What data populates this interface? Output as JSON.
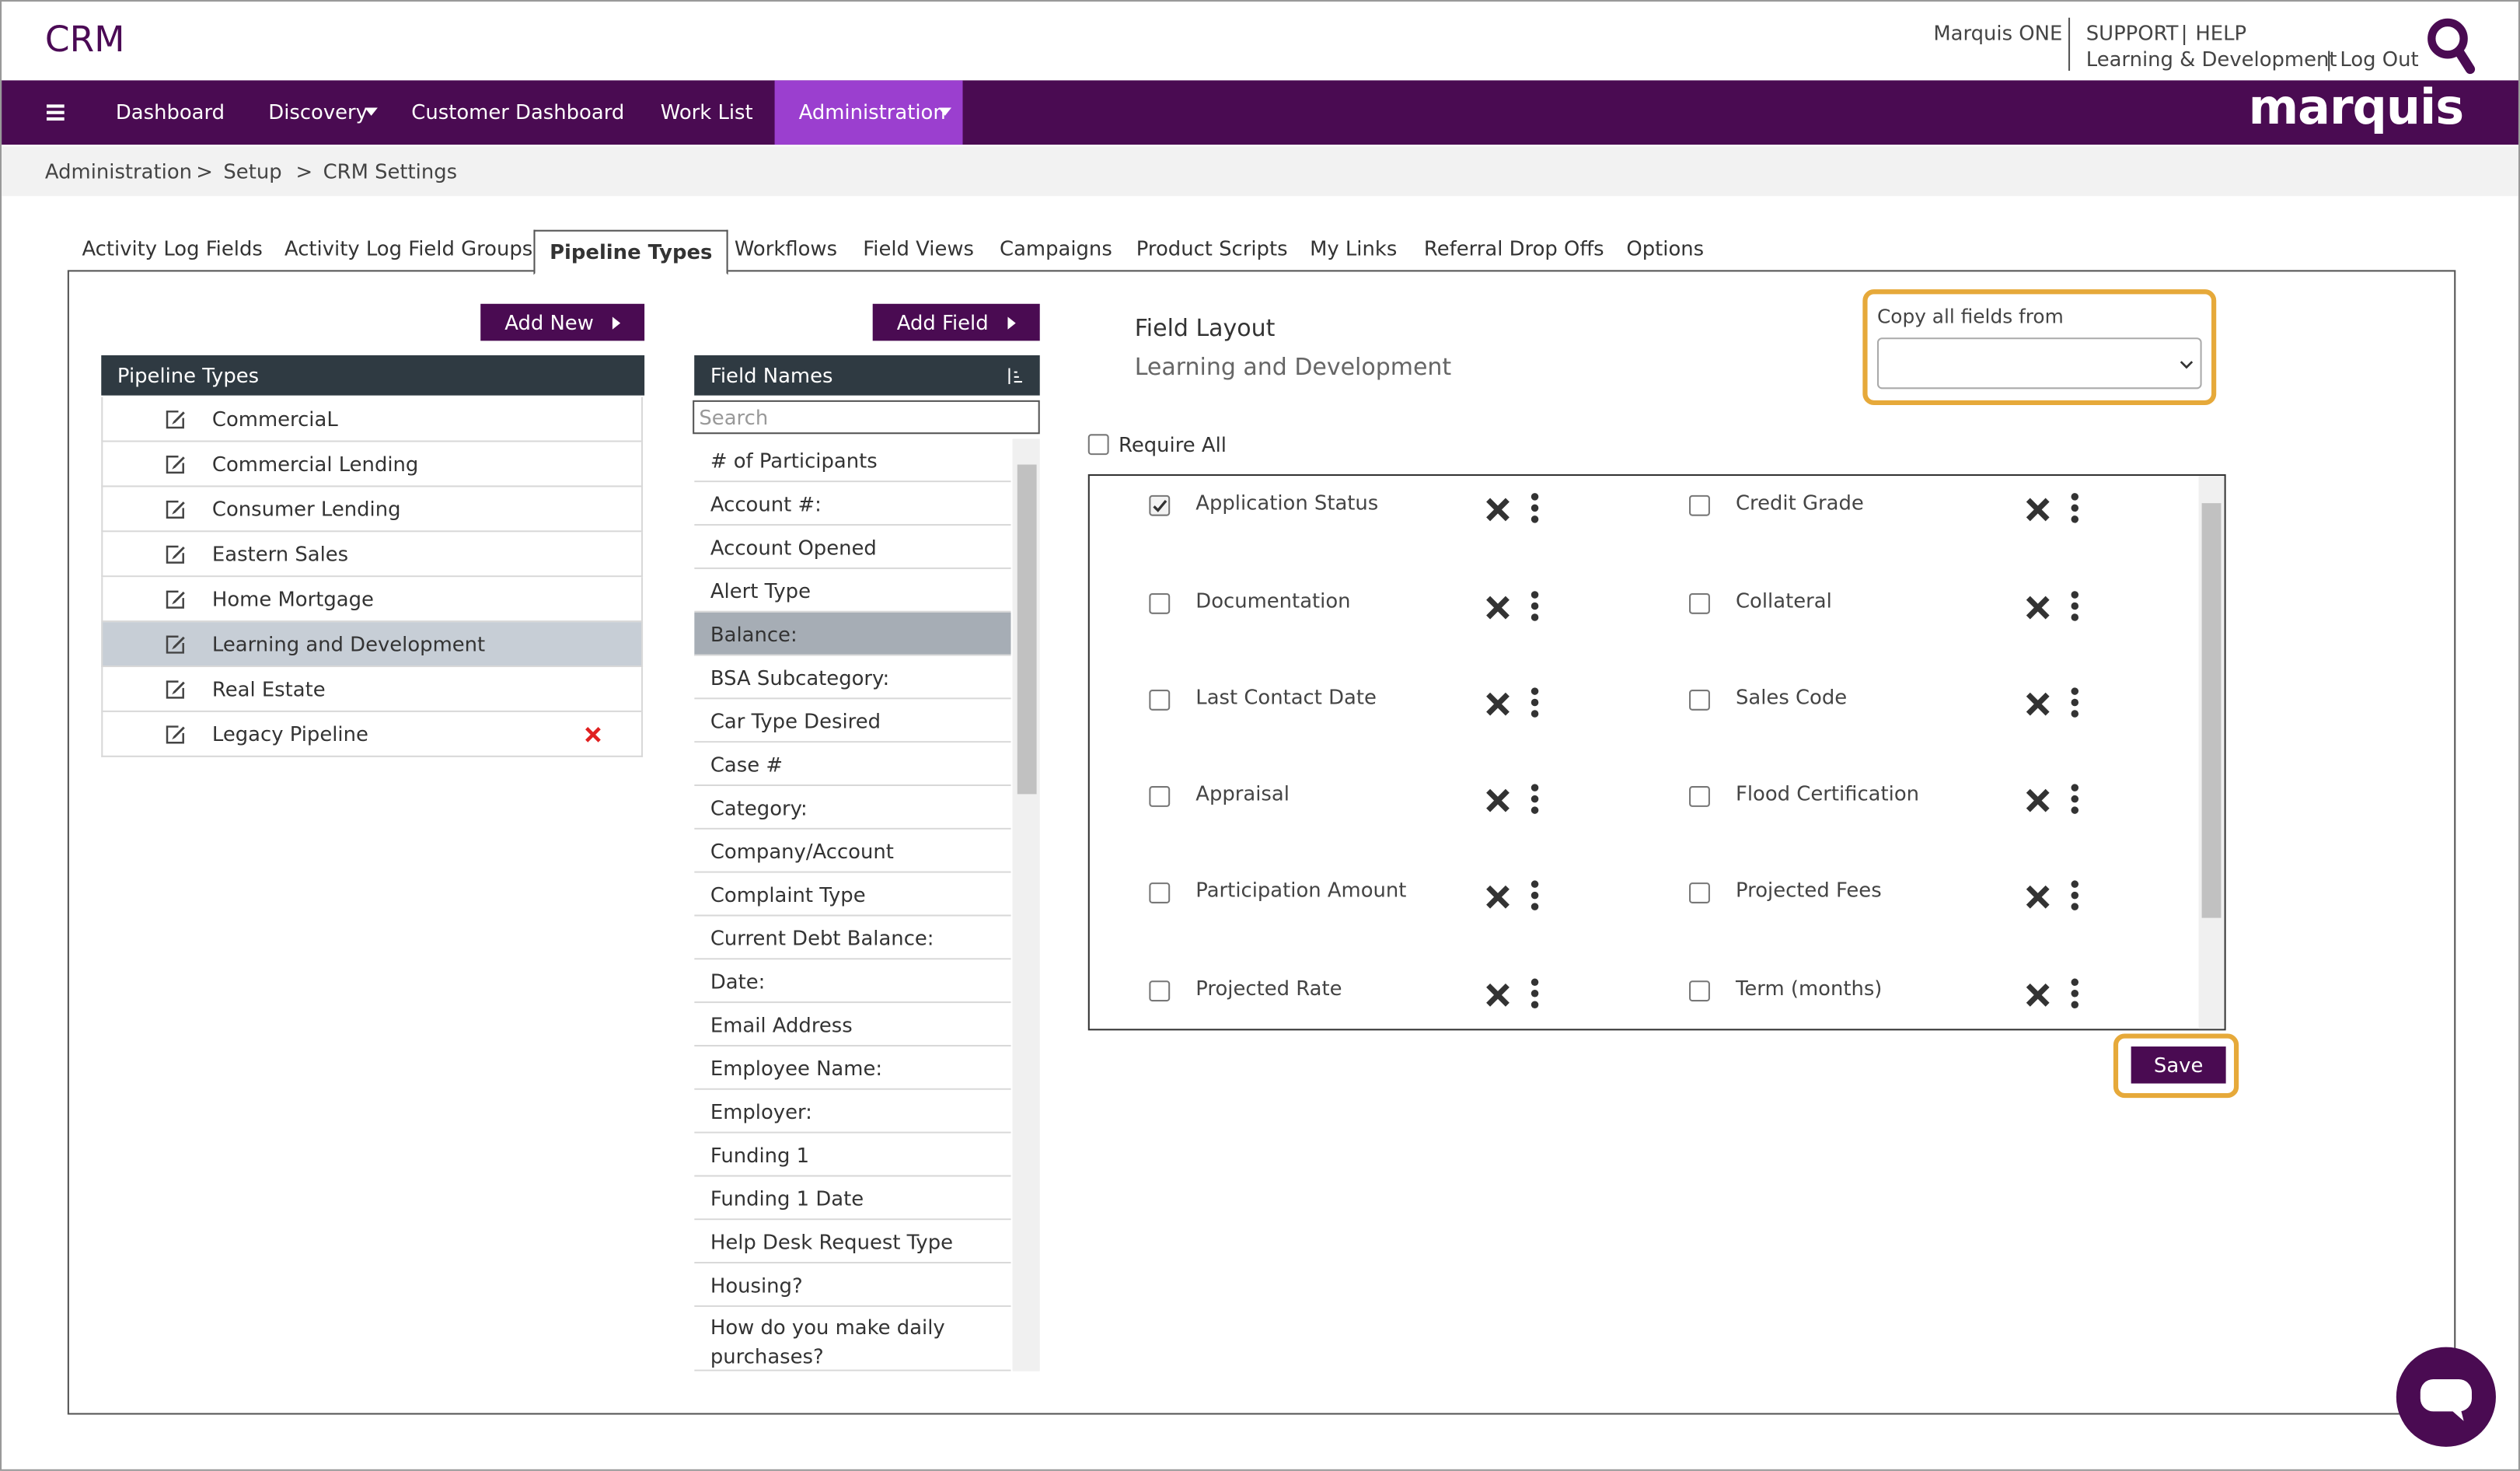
{
  "header": {
    "app_name": "CRM",
    "links": [
      "Marquis ONE",
      "SUPPORT",
      "HELP",
      "Learning & Development",
      "Log Out"
    ],
    "separator": "|",
    "logo": "marquis"
  },
  "nav": {
    "items": [
      "Dashboard",
      "Discovery",
      "Customer Dashboard",
      "Work List",
      "Administration"
    ],
    "active": 4
  },
  "breadcrumb": {
    "items": [
      "Administration",
      "Setup",
      "CRM Settings"
    ],
    "separator": ">"
  },
  "tabs": {
    "items": [
      "Activity Log Fields",
      "Activity Log Field Groups",
      "Pipeline Types",
      "Workflows",
      "Field Views",
      "Campaigns",
      "Product Scripts",
      "My Links",
      "Referral Drop Offs",
      "Options"
    ],
    "active": 2
  },
  "pipeline_panel": {
    "button": "Add New",
    "header": "Pipeline Types",
    "items": [
      "CommerciaL",
      "Commercial Lending",
      "Consumer Lending",
      "Eastern Sales",
      "Home Mortgage",
      "Learning and Development",
      "Real Estate",
      "Legacy Pipeline"
    ],
    "selected": 5
  },
  "field_panel": {
    "button": "Add Field",
    "header": "Field Names",
    "search_placeholder": "Search",
    "items": [
      "# of Participants",
      "Account #:",
      "Account Opened",
      "Alert Type",
      "Balance:",
      "BSA Subcategory:",
      "Car Type Desired",
      "Case #",
      "Category:",
      "Company/Account",
      "Complaint Type",
      "Current Debt Balance:",
      "Date:",
      "Email Address",
      "Employee Name:",
      "Employer:",
      "Funding 1",
      "Funding 1 Date",
      "Help Desk Request Type",
      "Housing?",
      "How do you make daily purchases?"
    ],
    "selected": 4
  },
  "layout": {
    "title": "Field Layout",
    "subtitle": "Learning and Development",
    "copy_label": "Copy all fields from",
    "require_all": "Require All",
    "save": "Save",
    "fields": [
      {
        "label": "Application Status",
        "checked": true
      },
      {
        "label": "Credit Grade",
        "checked": false
      },
      {
        "label": "Documentation",
        "checked": false
      },
      {
        "label": "Collateral",
        "checked": false
      },
      {
        "label": "Last Contact Date",
        "checked": false
      },
      {
        "label": "Sales Code",
        "checked": false
      },
      {
        "label": "Appraisal",
        "checked": false
      },
      {
        "label": "Flood Certification",
        "checked": false
      },
      {
        "label": "Participation Amount",
        "checked": false
      },
      {
        "label": "Projected Fees",
        "checked": false
      },
      {
        "label": "Projected Rate",
        "checked": false
      },
      {
        "label": "Term (months)",
        "checked": false
      }
    ]
  }
}
